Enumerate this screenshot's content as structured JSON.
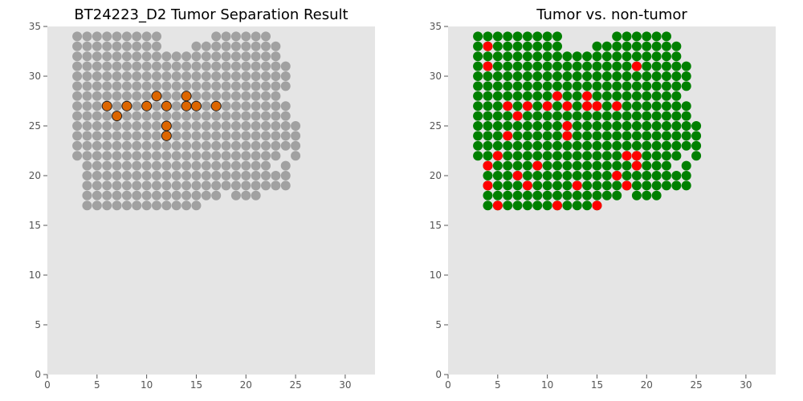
{
  "chart_data": [
    {
      "type": "scatter",
      "title": "BT24223_D2 Tumor Separation Result",
      "xlabel": "",
      "ylabel": "",
      "xlim": [
        0,
        33
      ],
      "ylim": [
        0,
        35
      ],
      "xticks": [
        "0",
        "5",
        "10",
        "15",
        "20",
        "25",
        "30"
      ],
      "yticks": [
        "0",
        "5",
        "10",
        "15",
        "20",
        "25",
        "30",
        "35"
      ],
      "grid": false,
      "background_color": "#e5e5e5",
      "colors": {
        "base": "#999999",
        "highlight": "#dd6600",
        "highlight_edge": "#222222"
      },
      "columns": {
        "3": [
          22,
          23,
          24,
          25,
          26,
          27,
          28,
          29,
          30,
          31,
          32,
          33,
          34
        ],
        "4": [
          17,
          18,
          19,
          20,
          21,
          22,
          23,
          24,
          25,
          26,
          27,
          28,
          29,
          30,
          31,
          32,
          33,
          34
        ],
        "5": [
          17,
          18,
          19,
          20,
          21,
          22,
          23,
          24,
          25,
          26,
          27,
          28,
          29,
          30,
          31,
          32,
          33,
          34
        ],
        "6": [
          17,
          18,
          19,
          20,
          21,
          22,
          23,
          24,
          25,
          26,
          28,
          29,
          30,
          31,
          32,
          33,
          34
        ],
        "7": [
          17,
          18,
          19,
          20,
          21,
          22,
          23,
          24,
          25,
          27,
          28,
          29,
          30,
          31,
          32,
          33,
          34
        ],
        "8": [
          17,
          18,
          19,
          20,
          21,
          22,
          23,
          24,
          25,
          26,
          28,
          29,
          30,
          31,
          32,
          33,
          34
        ],
        "9": [
          17,
          18,
          19,
          20,
          21,
          22,
          23,
          24,
          25,
          26,
          27,
          28,
          29,
          30,
          31,
          32,
          33,
          34
        ],
        "10": [
          17,
          18,
          19,
          20,
          21,
          22,
          23,
          24,
          25,
          26,
          28,
          29,
          30,
          31,
          32,
          33,
          34
        ],
        "11": [
          17,
          18,
          19,
          20,
          21,
          22,
          23,
          24,
          25,
          26,
          27,
          29,
          30,
          31,
          32,
          33,
          34
        ],
        "12": [
          17,
          18,
          19,
          20,
          21,
          22,
          23,
          26,
          28,
          29,
          30,
          31,
          32
        ],
        "13": [
          17,
          18,
          19,
          20,
          21,
          22,
          23,
          24,
          25,
          26,
          27,
          28,
          29,
          30,
          31,
          32
        ],
        "14": [
          17,
          18,
          19,
          20,
          21,
          22,
          23,
          24,
          25,
          26,
          29,
          30,
          31,
          32
        ],
        "15": [
          17,
          18,
          19,
          20,
          21,
          22,
          23,
          24,
          25,
          26,
          28,
          29,
          30,
          31,
          32,
          33
        ],
        "16": [
          18,
          19,
          20,
          21,
          22,
          23,
          24,
          25,
          26,
          27,
          28,
          29,
          30,
          31,
          32,
          33
        ],
        "17": [
          18,
          19,
          20,
          21,
          22,
          23,
          24,
          25,
          26,
          28,
          29,
          30,
          31,
          32,
          33,
          34
        ],
        "18": [
          19,
          20,
          21,
          22,
          23,
          24,
          25,
          26,
          27,
          28,
          29,
          30,
          31,
          32,
          33,
          34
        ],
        "19": [
          18,
          19,
          20,
          21,
          22,
          23,
          24,
          25,
          26,
          27,
          28,
          29,
          30,
          31,
          32,
          33,
          34
        ],
        "20": [
          18,
          19,
          20,
          21,
          22,
          23,
          24,
          25,
          26,
          27,
          28,
          29,
          30,
          31,
          32,
          33,
          34
        ],
        "21": [
          18,
          19,
          20,
          21,
          22,
          23,
          24,
          25,
          26,
          27,
          28,
          29,
          30,
          31,
          32,
          33,
          34
        ],
        "22": [
          19,
          20,
          21,
          22,
          23,
          24,
          25,
          26,
          27,
          28,
          29,
          30,
          31,
          32,
          33,
          34
        ],
        "23": [
          19,
          20,
          22,
          23,
          24,
          25,
          26,
          27,
          28,
          29,
          30,
          31,
          32,
          33
        ],
        "24": [
          19,
          20,
          21,
          23,
          24,
          25,
          26,
          27,
          29,
          30,
          31
        ],
        "25": [
          22,
          23,
          24,
          25
        ]
      },
      "highlight": [
        [
          6,
          27
        ],
        [
          7,
          26
        ],
        [
          8,
          27
        ],
        [
          10,
          27
        ],
        [
          11,
          28
        ],
        [
          12,
          27
        ],
        [
          12,
          25
        ],
        [
          12,
          24
        ],
        [
          14,
          28
        ],
        [
          14,
          27
        ],
        [
          15,
          27
        ],
        [
          17,
          27
        ]
      ]
    },
    {
      "type": "scatter",
      "title": "Tumor vs. non-tumor",
      "xlabel": "",
      "ylabel": "",
      "xlim": [
        0,
        33
      ],
      "ylim": [
        0,
        35
      ],
      "xticks": [
        "0",
        "5",
        "10",
        "15",
        "20",
        "25",
        "30"
      ],
      "yticks": [
        "0",
        "5",
        "10",
        "15",
        "20",
        "25",
        "30",
        "35"
      ],
      "grid": false,
      "background_color": "#e5e5e5",
      "colors": {
        "base": "#008000",
        "highlight": "#ff0000"
      },
      "columns": {
        "3": [
          22,
          23,
          24,
          25,
          26,
          27,
          28,
          29,
          30,
          31,
          32,
          33,
          34
        ],
        "4": [
          17,
          18,
          19,
          20,
          21,
          22,
          23,
          24,
          25,
          26,
          27,
          28,
          29,
          30,
          31,
          32,
          33,
          34
        ],
        "5": [
          17,
          18,
          19,
          20,
          21,
          22,
          23,
          24,
          25,
          26,
          27,
          28,
          29,
          30,
          31,
          32,
          33,
          34
        ],
        "6": [
          17,
          18,
          19,
          20,
          21,
          22,
          23,
          24,
          25,
          26,
          27,
          28,
          29,
          30,
          31,
          32,
          33,
          34
        ],
        "7": [
          17,
          18,
          19,
          20,
          21,
          22,
          23,
          24,
          25,
          26,
          27,
          28,
          29,
          30,
          31,
          32,
          33,
          34
        ],
        "8": [
          17,
          18,
          19,
          20,
          21,
          22,
          23,
          24,
          25,
          26,
          27,
          28,
          29,
          30,
          31,
          32,
          33,
          34
        ],
        "9": [
          17,
          18,
          19,
          20,
          21,
          22,
          23,
          24,
          25,
          26,
          27,
          28,
          29,
          30,
          31,
          32,
          33,
          34
        ],
        "10": [
          17,
          18,
          19,
          20,
          21,
          22,
          23,
          24,
          25,
          26,
          27,
          28,
          29,
          30,
          31,
          32,
          33,
          34
        ],
        "11": [
          17,
          18,
          19,
          20,
          21,
          22,
          23,
          24,
          25,
          26,
          27,
          28,
          29,
          30,
          31,
          32,
          33,
          34
        ],
        "12": [
          17,
          18,
          19,
          20,
          21,
          22,
          23,
          24,
          25,
          26,
          27,
          28,
          29,
          30,
          31,
          32
        ],
        "13": [
          17,
          18,
          19,
          20,
          21,
          22,
          23,
          24,
          25,
          26,
          27,
          28,
          29,
          30,
          31,
          32
        ],
        "14": [
          17,
          18,
          19,
          20,
          21,
          22,
          23,
          24,
          25,
          26,
          27,
          28,
          29,
          30,
          31,
          32
        ],
        "15": [
          17,
          18,
          19,
          20,
          21,
          22,
          23,
          24,
          25,
          26,
          27,
          28,
          29,
          30,
          31,
          32,
          33
        ],
        "16": [
          18,
          19,
          20,
          21,
          22,
          23,
          24,
          25,
          26,
          27,
          28,
          29,
          30,
          31,
          32,
          33
        ],
        "17": [
          18,
          19,
          20,
          21,
          22,
          23,
          24,
          25,
          26,
          27,
          28,
          29,
          30,
          31,
          32,
          33,
          34
        ],
        "18": [
          19,
          20,
          21,
          22,
          23,
          24,
          25,
          26,
          27,
          28,
          29,
          30,
          31,
          32,
          33,
          34
        ],
        "19": [
          18,
          19,
          20,
          21,
          22,
          23,
          24,
          25,
          26,
          27,
          28,
          29,
          30,
          31,
          32,
          33,
          34
        ],
        "20": [
          18,
          19,
          20,
          21,
          22,
          23,
          24,
          25,
          26,
          27,
          28,
          29,
          30,
          31,
          32,
          33,
          34
        ],
        "21": [
          18,
          19,
          20,
          21,
          22,
          23,
          24,
          25,
          26,
          27,
          28,
          29,
          30,
          31,
          32,
          33,
          34
        ],
        "22": [
          19,
          20,
          21,
          22,
          23,
          24,
          25,
          26,
          27,
          28,
          29,
          30,
          31,
          32,
          33,
          34
        ],
        "23": [
          19,
          20,
          22,
          23,
          24,
          25,
          26,
          27,
          28,
          29,
          30,
          31,
          32,
          33
        ],
        "24": [
          19,
          20,
          21,
          23,
          24,
          25,
          26,
          27,
          29,
          30,
          31
        ],
        "25": [
          22,
          23,
          24,
          25
        ]
      },
      "highlight": [
        [
          4,
          33
        ],
        [
          4,
          31
        ],
        [
          4,
          21
        ],
        [
          4,
          19
        ],
        [
          5,
          22
        ],
        [
          5,
          17
        ],
        [
          6,
          27
        ],
        [
          6,
          24
        ],
        [
          7,
          26
        ],
        [
          7,
          20
        ],
        [
          8,
          27
        ],
        [
          8,
          19
        ],
        [
          9,
          21
        ],
        [
          10,
          27
        ],
        [
          11,
          28
        ],
        [
          11,
          17
        ],
        [
          12,
          27
        ],
        [
          12,
          25
        ],
        [
          12,
          24
        ],
        [
          13,
          19
        ],
        [
          14,
          28
        ],
        [
          14,
          27
        ],
        [
          15,
          27
        ],
        [
          15,
          17
        ],
        [
          17,
          27
        ],
        [
          17,
          20
        ],
        [
          18,
          22
        ],
        [
          18,
          19
        ],
        [
          19,
          31
        ],
        [
          19,
          22
        ],
        [
          19,
          21
        ]
      ]
    }
  ]
}
